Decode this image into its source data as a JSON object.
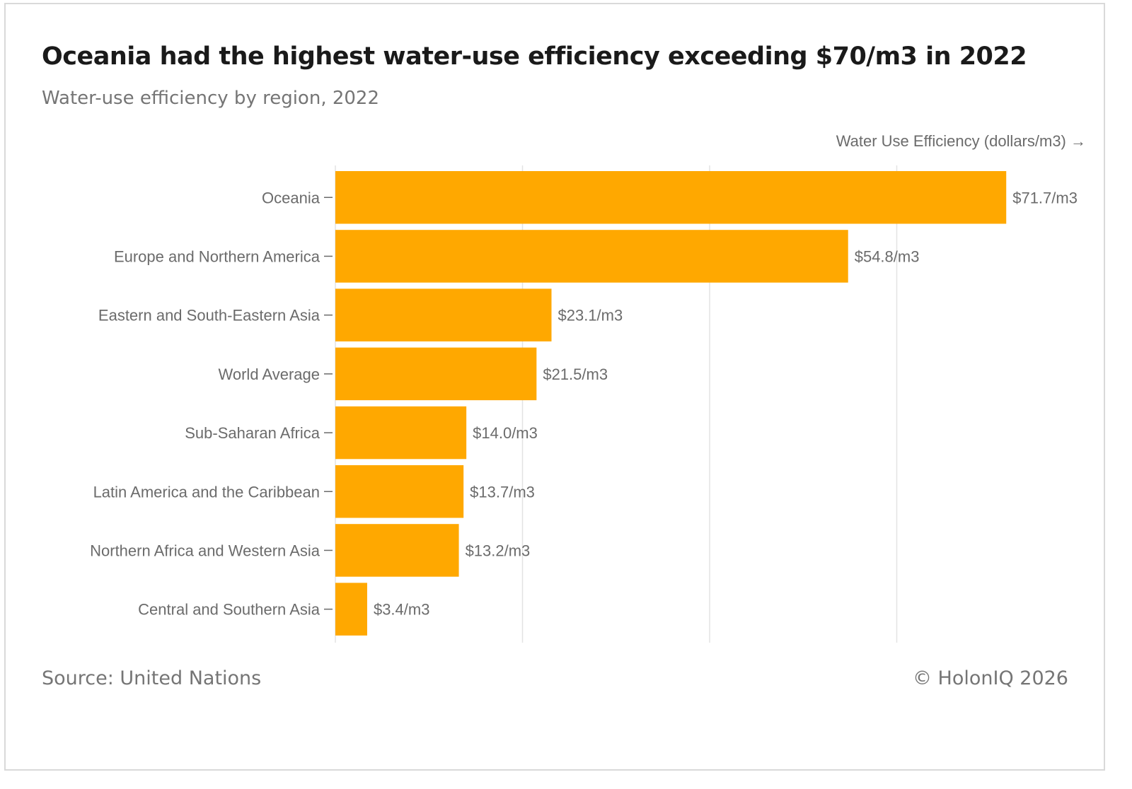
{
  "header": {
    "title": "Oceania had the highest water-use efficiency exceeding $70/m3 in 2022",
    "subtitle": "Water-use efficiency by region, 2022"
  },
  "footer": {
    "source": "Source: United Nations",
    "copyright": "© HolonIQ 2026"
  },
  "colors": {
    "bar": "#FFA800",
    "grid": "#e3e3e3",
    "axis_text": "#6b6b6b"
  },
  "chart_data": {
    "type": "bar",
    "orientation": "horizontal",
    "title": "Oceania had the highest water-use efficiency exceeding $70/m3 in 2022",
    "subtitle": "Water-use efficiency by region, 2022",
    "xlabel": "Water Use Efficiency (dollars/m3) →",
    "ylabel": "",
    "xlim": [
      0,
      80
    ],
    "grid_values": [
      0,
      20,
      40,
      60
    ],
    "grid": true,
    "value_prefix": "$",
    "value_suffix": "/m3",
    "categories": [
      "Oceania",
      "Europe and Northern America",
      "Eastern and South-Eastern Asia",
      "World Average",
      "Sub-Saharan Africa",
      "Latin America and the Caribbean",
      "Northern Africa and Western Asia",
      "Central and Southern Asia"
    ],
    "values": [
      71.7,
      54.8,
      23.1,
      21.5,
      14.0,
      13.7,
      13.2,
      3.4
    ],
    "data_labels": [
      "$71.7/m3",
      "$54.8/m3",
      "$23.1/m3",
      "$21.5/m3",
      "$14.0/m3",
      "$13.7/m3",
      "$13.2/m3",
      "$3.4/m3"
    ]
  }
}
